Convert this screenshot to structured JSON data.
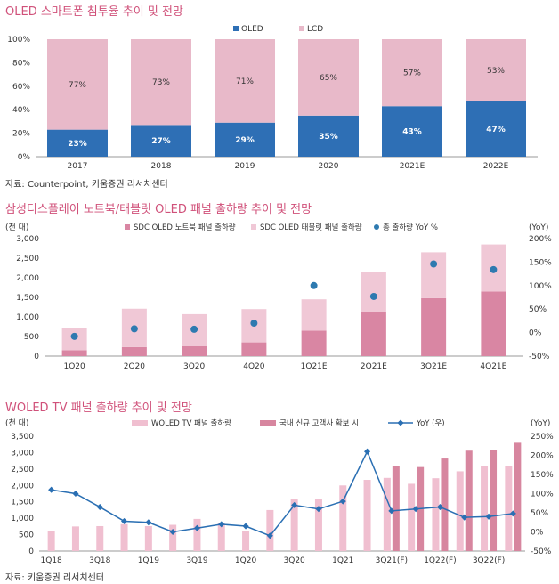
{
  "chart_data": [
    {
      "type": "bar",
      "stacked": true,
      "title": "OLED 스마트폰 침투율 추이 및 전망",
      "source": "자료: Counterpoint, 키움증권 리서치센터",
      "categories": [
        "2017",
        "2018",
        "2019",
        "2020",
        "2021E",
        "2022E"
      ],
      "series": [
        {
          "name": "OLED",
          "values": [
            23,
            27,
            29,
            35,
            43,
            47
          ],
          "labels": [
            "23%",
            "27%",
            "29%",
            "35%",
            "43%",
            "47%"
          ]
        },
        {
          "name": "LCD",
          "values": [
            77,
            73,
            71,
            65,
            57,
            53
          ],
          "labels": [
            "77%",
            "73%",
            "71%",
            "65%",
            "57%",
            "53%"
          ]
        }
      ],
      "ylim": [
        0,
        100
      ],
      "yticks": [
        "0%",
        "20%",
        "40%",
        "60%",
        "80%",
        "100%"
      ],
      "colors": {
        "OLED": "#2e6fb5",
        "LCD": "#e8b9c9"
      },
      "legend": "top-center"
    },
    {
      "type": "bar",
      "stacked": true,
      "title": "삼성디스플레이 노트북/태블릿 OLED 패널 출하량 추이 및 전망",
      "y_unit": "(천 대)",
      "y2_unit": "(YoY)",
      "categories": [
        "1Q20",
        "2Q20",
        "3Q20",
        "4Q20",
        "1Q21E",
        "2Q21E",
        "3Q21E",
        "4Q21E"
      ],
      "series": [
        {
          "name": "SDC OLED 노트북 패널 출하량",
          "type": "bar",
          "values": [
            150,
            230,
            250,
            350,
            650,
            1130,
            1480,
            1650
          ]
        },
        {
          "name": "SDC OLED 태블릿 패널 출하량",
          "type": "bar",
          "values": [
            570,
            980,
            820,
            850,
            800,
            1020,
            1170,
            1200
          ]
        },
        {
          "name": "총 출하량 YoY %",
          "type": "scatter",
          "axis": "right",
          "values": [
            -8,
            8,
            7,
            20,
            100,
            77,
            146,
            134
          ]
        }
      ],
      "ylim": [
        0,
        3000
      ],
      "yticks": [
        "0",
        "500",
        "1,000",
        "1,500",
        "2,000",
        "2,500",
        "3,000"
      ],
      "y2lim": [
        -50,
        200
      ],
      "y2ticks": [
        "-50%",
        "0%",
        "50%",
        "100%",
        "150%",
        "200%"
      ],
      "colors": {
        "notebook": "#d986a3",
        "tablet": "#f0c8d6",
        "yoy": "#2e7ab0"
      },
      "legend": "top"
    },
    {
      "type": "bar",
      "title": "WOLED TV 패널 출하량 추이 및 전망",
      "source": "자료: 키움증권 리서치센터",
      "y_unit": "(천 대)",
      "y2_unit": "(YoY)",
      "categories": [
        "1Q18",
        "2Q18",
        "3Q18",
        "4Q18",
        "1Q19",
        "2Q19",
        "3Q19",
        "4Q19",
        "1Q20",
        "2Q20",
        "3Q20",
        "4Q20",
        "1Q21",
        "2Q21",
        "3Q21(F)",
        "4Q21(F)",
        "1Q22(F)",
        "2Q22(F)",
        "3Q22(F)",
        "4Q22(F)"
      ],
      "x_tick_labels": [
        "1Q18",
        "3Q18",
        "1Q19",
        "3Q19",
        "1Q20",
        "3Q20",
        "1Q21",
        "3Q21(F)",
        "1Q22(F)",
        "3Q22(F)"
      ],
      "series": [
        {
          "name": "WOLED TV 패널 출하량",
          "type": "bar",
          "values": [
            600,
            750,
            760,
            820,
            760,
            800,
            980,
            850,
            620,
            1250,
            1600,
            1600,
            2000,
            2170,
            2230,
            2050,
            2220,
            2430,
            2580,
            2580
          ]
        },
        {
          "name": "국내 신규 고객사 확보 시",
          "type": "bar",
          "values": [
            null,
            null,
            null,
            null,
            null,
            null,
            null,
            null,
            null,
            null,
            null,
            null,
            null,
            null,
            2580,
            2560,
            2820,
            3060,
            3080,
            3300
          ]
        },
        {
          "name": "YoY (우)",
          "type": "line",
          "axis": "right",
          "values": [
            110,
            100,
            65,
            28,
            25,
            0,
            10,
            20,
            15,
            -10,
            70,
            60,
            80,
            210,
            55,
            60,
            65,
            38,
            40,
            48
          ]
        }
      ],
      "ylim": [
        0,
        3500
      ],
      "yticks": [
        "0",
        "500",
        "1,000",
        "1,500",
        "2,000",
        "2,500",
        "3,000",
        "3,500"
      ],
      "y2lim": [
        -50,
        250
      ],
      "y2ticks": [
        "-50%",
        "0%",
        "50%",
        "100%",
        "150%",
        "200%",
        "250%"
      ],
      "colors": {
        "base": "#f0bfd0",
        "new_customer": "#d7869f",
        "yoy": "#2a6fb3"
      },
      "legend": "top"
    }
  ]
}
